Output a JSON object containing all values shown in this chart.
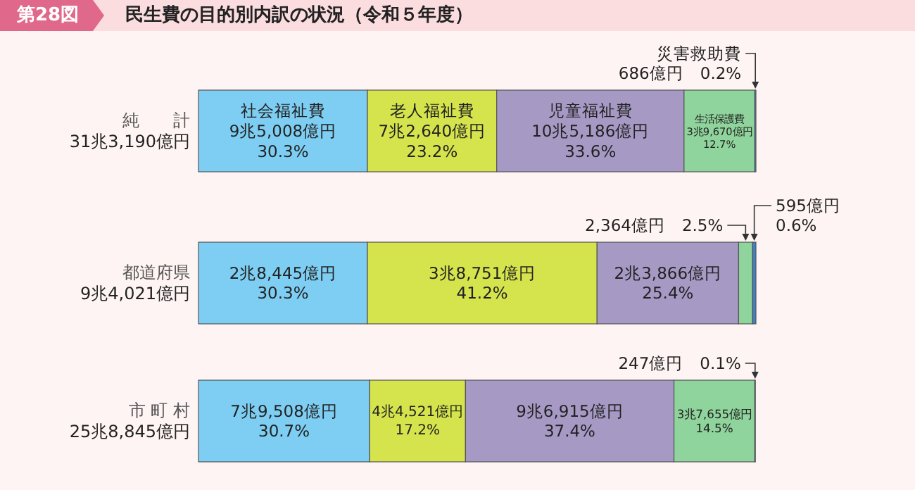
{
  "chart_data": {
    "type": "bar",
    "orientation": "horizontal",
    "stacked": true,
    "title": "民生費の目的別内訳の状況（令和５年度）",
    "annotations": [
      "第28図"
    ],
    "categories": [
      "純　　計\n31兆3,190億円",
      "都道府県\n9兆4,021億円",
      "市 町 村\n25兆8,845億円"
    ],
    "series": [
      {
        "name": "社会福祉費",
        "color": "#7ecef3",
        "values": [
          30.3,
          30.3,
          30.7
        ],
        "value_labels": [
          "9兆5,008億円\n30.3%",
          "2兆8,445億円\n30.3%",
          "7兆9,508億円\n30.7%"
        ]
      },
      {
        "name": "老人福祉費",
        "color": "#d5e44c",
        "values": [
          23.2,
          41.2,
          17.2
        ],
        "value_labels": [
          "7兆2,640億円\n23.2%",
          "3兆8,751億円\n41.2%",
          "4兆4,521億円\n17.2%"
        ]
      },
      {
        "name": "児童福祉費",
        "color": "#a69ac5",
        "values": [
          33.6,
          25.4,
          37.4
        ],
        "value_labels": [
          "10兆5,186億円\n33.6%",
          "2兆3,866億円\n25.4%",
          "9兆6,915億円\n37.4%"
        ]
      },
      {
        "name": "生活保護費",
        "color": "#8fd49c",
        "values": [
          12.7,
          2.5,
          14.5
        ],
        "value_labels": [
          "3兆9,670億円\n12.7%",
          "2,364億円　2.5%",
          "3兆7,655億円\n14.5%"
        ]
      },
      {
        "name": "災害救助費",
        "color": "#3f7fc4",
        "values": [
          0.2,
          0.6,
          0.1
        ],
        "value_labels": [
          "686億円　0.2%",
          "595億円\n0.6%",
          "247億円　0.1%"
        ]
      }
    ],
    "grid": false
  }
}
